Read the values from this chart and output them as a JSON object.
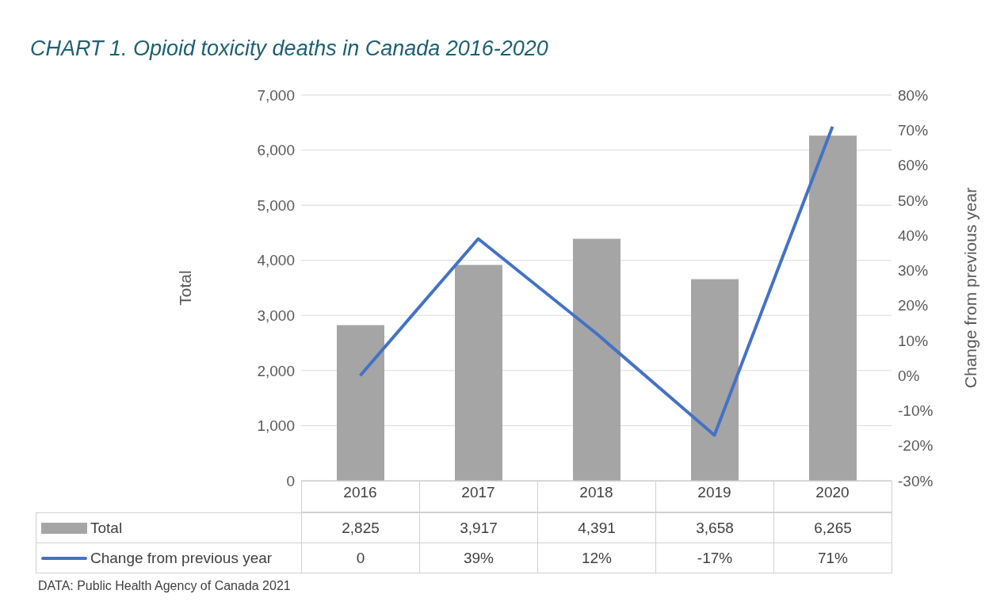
{
  "chart_data": {
    "type": "bar",
    "title": "CHART 1. Opioid toxicity deaths in Canada 2016-2020",
    "ylabel": "Total",
    "y2label": "Change from previous year",
    "categories": [
      "2016",
      "2017",
      "2018",
      "2019",
      "2020"
    ],
    "series": [
      {
        "name": "Total",
        "color": "#a5a5a5",
        "values": [
          2825,
          3917,
          4391,
          3658,
          6265
        ],
        "value_labels": [
          "2,825",
          "3,917",
          "4,391",
          "3,658",
          "6,265"
        ]
      },
      {
        "name": "Change from previous year",
        "type": "line",
        "axis": "y2",
        "color": "#4472c4",
        "values": [
          0,
          39,
          12,
          -17,
          71
        ],
        "value_labels": [
          "0",
          "39%",
          "12%",
          "-17%",
          "71%"
        ]
      }
    ],
    "ylim": [
      0,
      7000
    ],
    "yticks": [
      {
        "value": 0,
        "label": "0"
      },
      {
        "value": 1000,
        "label": "1,000"
      },
      {
        "value": 2000,
        "label": "2,000"
      },
      {
        "value": 3000,
        "label": "3,000"
      },
      {
        "value": 4000,
        "label": "4,000"
      },
      {
        "value": 5000,
        "label": "5,000"
      },
      {
        "value": 6000,
        "label": "6,000"
      },
      {
        "value": 7000,
        "label": "7,000"
      }
    ],
    "y2lim": [
      -30,
      80
    ],
    "y2ticks": [
      {
        "value": -30,
        "label": "-30%"
      },
      {
        "value": -20,
        "label": "-20%"
      },
      {
        "value": -10,
        "label": "-10%"
      },
      {
        "value": 0,
        "label": "0%"
      },
      {
        "value": 10,
        "label": "10%"
      },
      {
        "value": 20,
        "label": "20%"
      },
      {
        "value": 30,
        "label": "30%"
      },
      {
        "value": 40,
        "label": "40%"
      },
      {
        "value": 50,
        "label": "50%"
      },
      {
        "value": 60,
        "label": "60%"
      },
      {
        "value": 70,
        "label": "70%"
      },
      {
        "value": 80,
        "label": "80%"
      }
    ],
    "grid": "y",
    "legend": "bottom",
    "marker": "none",
    "line_style": "solid",
    "annotations": [
      "DATA: Public Health Agency of Canada 2021"
    ]
  }
}
